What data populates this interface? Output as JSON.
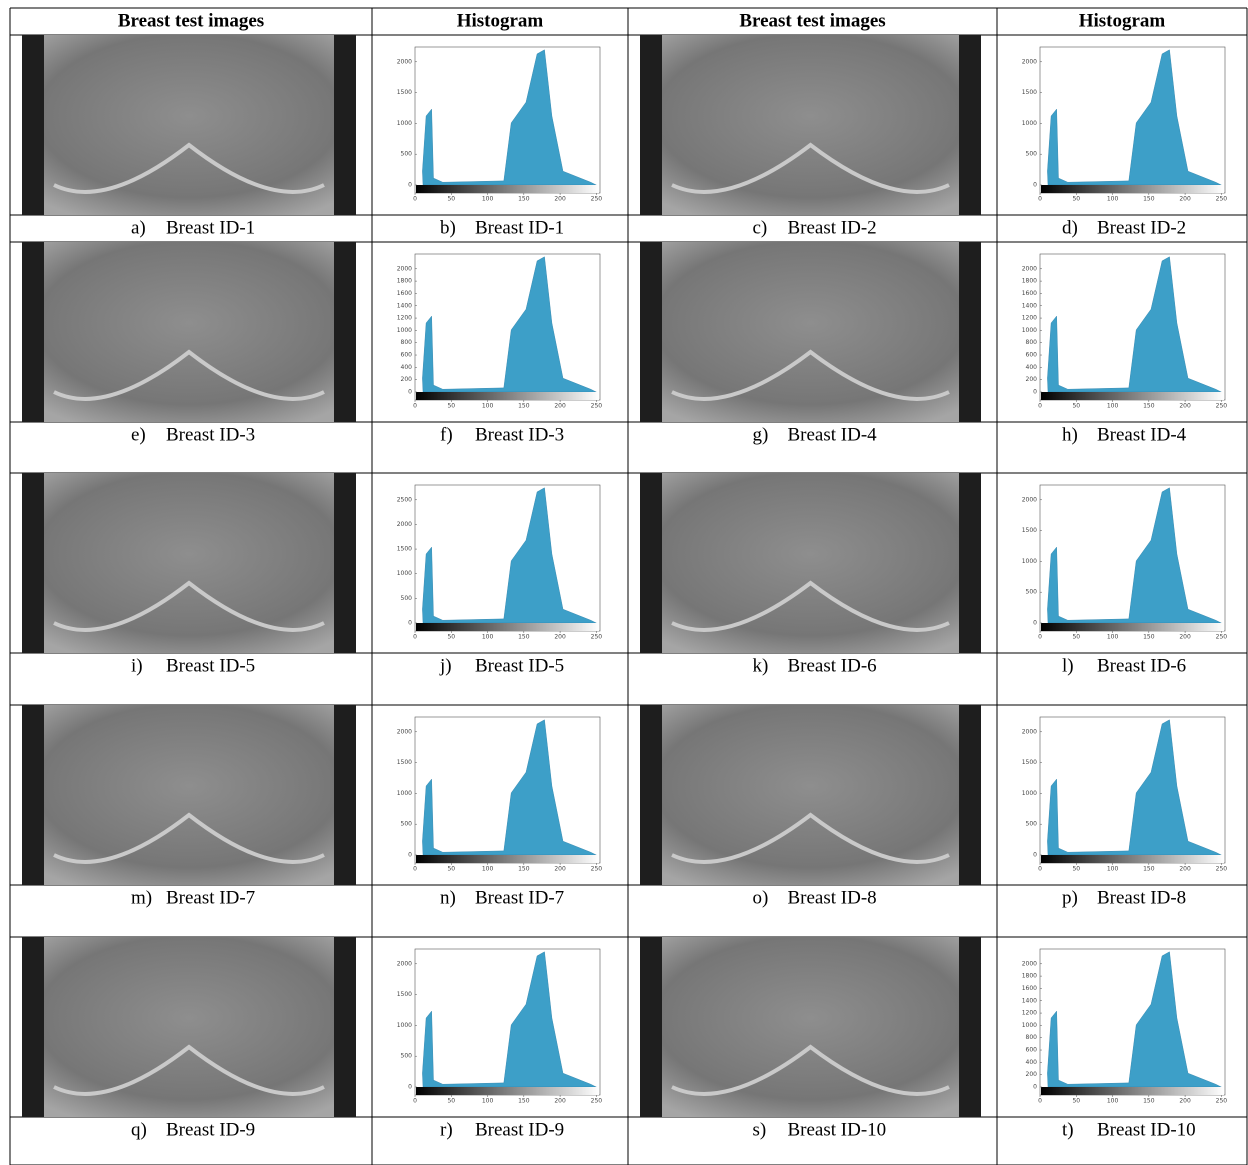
{
  "header": [
    "Breast test images",
    "Histogram",
    "Breast test images",
    "Histogram"
  ],
  "rows": [
    [
      {
        "label": "a)",
        "caption": "Breast ID-1"
      },
      {
        "label": "b)",
        "caption": "Breast ID-1"
      },
      {
        "label": "c)",
        "caption": "Breast ID-2"
      },
      {
        "label": "d)",
        "caption": "Breast ID-2"
      }
    ],
    [
      {
        "label": "e)",
        "caption": "Breast ID-3"
      },
      {
        "label": "f)",
        "caption": "Breast ID-3"
      },
      {
        "label": "g)",
        "caption": "Breast ID-4"
      },
      {
        "label": "h)",
        "caption": "Breast ID-4"
      }
    ],
    [
      {
        "label": "i)",
        "caption": "Breast ID-5"
      },
      {
        "label": "j)",
        "caption": "Breast ID-5"
      },
      {
        "label": "k)",
        "caption": "Breast ID-6"
      },
      {
        "label": "l)",
        "caption": "Breast ID-6"
      }
    ],
    [
      {
        "label": "m)",
        "caption": "Breast ID-7"
      },
      {
        "label": "n)",
        "caption": "Breast ID-7"
      },
      {
        "label": "o)",
        "caption": "Breast ID-8"
      },
      {
        "label": "p)",
        "caption": "Breast ID-8"
      }
    ],
    [
      {
        "label": "q)",
        "caption": "Breast ID-9"
      },
      {
        "label": "r)",
        "caption": "Breast ID-9"
      },
      {
        "label": "s)",
        "caption": "Breast ID-10"
      },
      {
        "label": "t)",
        "caption": "Breast ID-10"
      }
    ]
  ],
  "histograms": [
    {
      "xticks": [
        0,
        50,
        100,
        150,
        200,
        250
      ],
      "yticks": [
        0,
        500,
        1000,
        1500,
        2000
      ]
    },
    {
      "xticks": [
        0,
        50,
        100,
        150,
        200,
        250
      ],
      "yticks": [
        0,
        500,
        1000,
        1500,
        2000
      ]
    },
    {
      "xticks": [
        0,
        50,
        100,
        150,
        200,
        250
      ],
      "yticks": [
        0,
        200,
        400,
        600,
        800,
        1000,
        1200,
        1400,
        1600,
        1800,
        2000
      ]
    },
    {
      "xticks": [
        0,
        50,
        100,
        150,
        200,
        250
      ],
      "yticks": [
        0,
        200,
        400,
        600,
        800,
        1000,
        1200,
        1400,
        1600,
        1800,
        2000
      ]
    },
    {
      "xticks": [
        0,
        50,
        100,
        150,
        200,
        250
      ],
      "yticks": [
        0,
        500,
        1000,
        1500,
        2000,
        2500
      ]
    },
    {
      "xticks": [
        0,
        50,
        100,
        150,
        200,
        250
      ],
      "yticks": [
        0,
        500,
        1000,
        1500,
        2000
      ]
    },
    {
      "xticks": [
        0,
        50,
        100,
        150,
        200,
        250
      ],
      "yticks": [
        0,
        500,
        1000,
        1500,
        2000
      ]
    },
    {
      "xticks": [
        0,
        50,
        100,
        150,
        200,
        250
      ],
      "yticks": [
        0,
        500,
        1000,
        1500,
        2000
      ]
    },
    {
      "xticks": [
        0,
        50,
        100,
        150,
        200,
        250
      ],
      "yticks": [
        0,
        500,
        1000,
        1500,
        2000
      ]
    },
    {
      "xticks": [
        0,
        50,
        100,
        150,
        200,
        250
      ],
      "yticks": [
        0,
        200,
        400,
        600,
        800,
        1000,
        1200,
        1400,
        1600,
        1800,
        2000
      ]
    }
  ]
}
